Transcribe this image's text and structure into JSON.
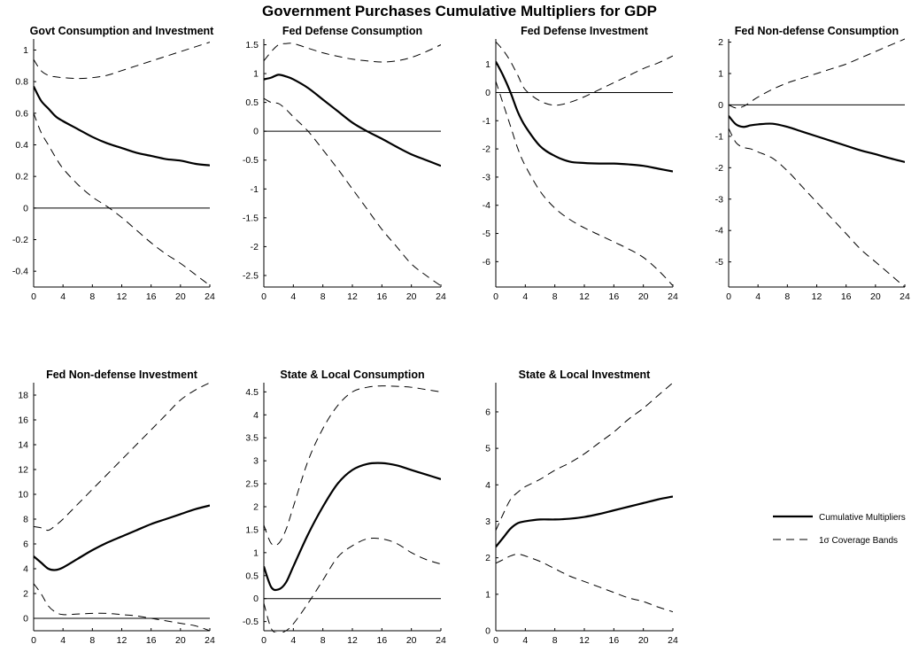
{
  "title": "Government Purchases Cumulative Multipliers for GDP",
  "legend": {
    "placement": "right-bottom",
    "items": [
      {
        "label": "Cumulative Multipliers",
        "style": "solid"
      },
      {
        "label": "1σ Coverage Bands",
        "style": "dashed"
      }
    ]
  },
  "chart_data": [
    {
      "type": "line",
      "title": "Govt Consumption and Investment",
      "x": [
        0,
        1,
        2,
        3,
        4,
        6,
        8,
        10,
        12,
        14,
        16,
        18,
        20,
        22,
        24
      ],
      "xticks": [
        0,
        4,
        8,
        12,
        16,
        20,
        24
      ],
      "yticks": [
        -0.4,
        -0.2,
        0,
        0.2,
        0.4,
        0.6,
        0.8,
        1
      ],
      "xlim": [
        0,
        24
      ],
      "ylim": [
        -0.5,
        1.07
      ],
      "zero_line": true,
      "series": [
        {
          "role": "multiplier",
          "values": [
            0.77,
            0.68,
            0.63,
            0.58,
            0.55,
            0.5,
            0.45,
            0.41,
            0.38,
            0.35,
            0.33,
            0.31,
            0.3,
            0.28,
            0.27
          ]
        },
        {
          "role": "upper",
          "values": [
            0.94,
            0.87,
            0.84,
            0.83,
            0.825,
            0.82,
            0.825,
            0.84,
            0.87,
            0.9,
            0.93,
            0.96,
            0.99,
            1.02,
            1.05
          ]
        },
        {
          "role": "lower",
          "values": [
            0.6,
            0.48,
            0.4,
            0.32,
            0.25,
            0.15,
            0.07,
            0.01,
            -0.06,
            -0.14,
            -0.22,
            -0.29,
            -0.35,
            -0.42,
            -0.49
          ]
        }
      ]
    },
    {
      "type": "line",
      "title": "Fed Defense Consumption",
      "x": [
        0,
        1,
        2,
        3,
        4,
        6,
        8,
        10,
        12,
        14,
        16,
        18,
        20,
        22,
        24
      ],
      "xticks": [
        0,
        4,
        8,
        12,
        16,
        20,
        24
      ],
      "yticks": [
        -2.5,
        -2,
        -1.5,
        -1,
        -0.5,
        0,
        0.5,
        1,
        1.5
      ],
      "xlim": [
        0,
        24
      ],
      "ylim": [
        -2.7,
        1.6
      ],
      "zero_line": true,
      "series": [
        {
          "role": "multiplier",
          "values": [
            0.9,
            0.93,
            0.98,
            0.95,
            0.9,
            0.75,
            0.55,
            0.35,
            0.15,
            0.0,
            -0.13,
            -0.27,
            -0.4,
            -0.5,
            -0.6
          ]
        },
        {
          "role": "upper",
          "values": [
            1.22,
            1.38,
            1.5,
            1.52,
            1.52,
            1.44,
            1.36,
            1.3,
            1.25,
            1.22,
            1.2,
            1.22,
            1.28,
            1.38,
            1.5
          ]
        },
        {
          "role": "lower",
          "values": [
            0.57,
            0.5,
            0.48,
            0.38,
            0.25,
            0.0,
            -0.32,
            -0.65,
            -1.0,
            -1.35,
            -1.7,
            -2.0,
            -2.3,
            -2.5,
            -2.68
          ]
        }
      ]
    },
    {
      "type": "line",
      "title": "Fed Defense Investment",
      "x": [
        0,
        1,
        2,
        3,
        4,
        6,
        8,
        10,
        12,
        14,
        16,
        18,
        20,
        22,
        24
      ],
      "xticks": [
        0,
        4,
        8,
        12,
        16,
        20,
        24
      ],
      "yticks": [
        -6,
        -5,
        -4,
        -3,
        -2,
        -1,
        0,
        1
      ],
      "xlim": [
        0,
        24
      ],
      "ylim": [
        -6.9,
        1.9
      ],
      "zero_line": true,
      "series": [
        {
          "role": "multiplier",
          "values": [
            1.1,
            0.6,
            0.0,
            -0.7,
            -1.2,
            -1.9,
            -2.25,
            -2.45,
            -2.5,
            -2.52,
            -2.52,
            -2.55,
            -2.6,
            -2.7,
            -2.8
          ]
        },
        {
          "role": "upper",
          "values": [
            1.8,
            1.5,
            1.1,
            0.6,
            0.1,
            -0.3,
            -0.45,
            -0.35,
            -0.15,
            0.1,
            0.35,
            0.6,
            0.85,
            1.05,
            1.3
          ]
        },
        {
          "role": "lower",
          "values": [
            0.4,
            -0.4,
            -1.2,
            -2.0,
            -2.6,
            -3.5,
            -4.1,
            -4.5,
            -4.8,
            -5.05,
            -5.3,
            -5.55,
            -5.85,
            -6.3,
            -6.85
          ]
        }
      ]
    },
    {
      "type": "line",
      "title": "Fed Non-defense Consumption",
      "x": [
        0,
        1,
        2,
        3,
        4,
        6,
        8,
        10,
        12,
        14,
        16,
        18,
        20,
        22,
        24
      ],
      "xticks": [
        0,
        4,
        8,
        12,
        16,
        20,
        24
      ],
      "yticks": [
        -5,
        -4,
        -3,
        -2,
        -1,
        0,
        1,
        2
      ],
      "xlim": [
        0,
        24
      ],
      "ylim": [
        -5.8,
        2.1
      ],
      "zero_line": true,
      "series": [
        {
          "role": "multiplier",
          "values": [
            -0.35,
            -0.62,
            -0.7,
            -0.65,
            -0.62,
            -0.6,
            -0.7,
            -0.85,
            -1.0,
            -1.15,
            -1.3,
            -1.45,
            -1.57,
            -1.7,
            -1.82
          ]
        },
        {
          "role": "upper",
          "values": [
            0.0,
            -0.1,
            -0.05,
            0.1,
            0.25,
            0.5,
            0.7,
            0.85,
            1.0,
            1.15,
            1.3,
            1.5,
            1.7,
            1.9,
            2.1
          ]
        },
        {
          "role": "lower",
          "values": [
            -0.75,
            -1.2,
            -1.35,
            -1.4,
            -1.5,
            -1.7,
            -2.1,
            -2.6,
            -3.1,
            -3.6,
            -4.1,
            -4.6,
            -5.0,
            -5.4,
            -5.8
          ]
        }
      ]
    },
    {
      "type": "line",
      "title": "Fed Non-defense Investment",
      "x": [
        0,
        1,
        2,
        3,
        4,
        6,
        8,
        10,
        12,
        14,
        16,
        18,
        20,
        22,
        24
      ],
      "xticks": [
        0,
        4,
        8,
        12,
        16,
        20,
        24
      ],
      "yticks": [
        0,
        2,
        4,
        6,
        8,
        10,
        12,
        14,
        16,
        18
      ],
      "xlim": [
        0,
        24
      ],
      "ylim": [
        -1.0,
        19.0
      ],
      "zero_line": true,
      "series": [
        {
          "role": "multiplier",
          "values": [
            5.0,
            4.5,
            4.0,
            3.9,
            4.1,
            4.8,
            5.5,
            6.1,
            6.6,
            7.1,
            7.6,
            8.0,
            8.4,
            8.8,
            9.1
          ]
        },
        {
          "role": "upper",
          "values": [
            7.4,
            7.3,
            7.1,
            7.5,
            8.0,
            9.2,
            10.4,
            11.6,
            12.8,
            14.0,
            15.2,
            16.4,
            17.6,
            18.4,
            19.0
          ]
        },
        {
          "role": "lower",
          "values": [
            2.8,
            2.0,
            1.0,
            0.5,
            0.3,
            0.35,
            0.4,
            0.4,
            0.3,
            0.2,
            0.0,
            -0.2,
            -0.4,
            -0.6,
            -1.0
          ]
        }
      ]
    },
    {
      "type": "line",
      "title": "State & Local Consumption",
      "x": [
        0,
        1,
        2,
        3,
        4,
        6,
        8,
        10,
        12,
        14,
        16,
        18,
        20,
        22,
        24
      ],
      "xticks": [
        0,
        4,
        8,
        12,
        16,
        20,
        24
      ],
      "yticks": [
        -0.5,
        0,
        0.5,
        1,
        1.5,
        2,
        2.5,
        3,
        3.5,
        4,
        4.5
      ],
      "xlim": [
        0,
        24
      ],
      "ylim": [
        -0.7,
        4.7
      ],
      "zero_line": true,
      "series": [
        {
          "role": "multiplier",
          "values": [
            0.7,
            0.25,
            0.2,
            0.35,
            0.7,
            1.4,
            2.0,
            2.5,
            2.8,
            2.93,
            2.95,
            2.9,
            2.8,
            2.7,
            2.6
          ]
        },
        {
          "role": "upper",
          "values": [
            1.6,
            1.2,
            1.2,
            1.5,
            2.0,
            3.0,
            3.7,
            4.2,
            4.5,
            4.6,
            4.63,
            4.62,
            4.6,
            4.55,
            4.5
          ]
        },
        {
          "role": "lower",
          "values": [
            -0.1,
            -0.65,
            -0.75,
            -0.7,
            -0.55,
            -0.1,
            0.4,
            0.9,
            1.15,
            1.3,
            1.3,
            1.2,
            1.0,
            0.85,
            0.75
          ]
        }
      ]
    },
    {
      "type": "line",
      "title": "State & Local Investment",
      "x": [
        0,
        1,
        2,
        3,
        4,
        6,
        8,
        10,
        12,
        14,
        16,
        18,
        20,
        22,
        24
      ],
      "xticks": [
        0,
        4,
        8,
        12,
        16,
        20,
        24
      ],
      "yticks": [
        0,
        1,
        2,
        3,
        4,
        5,
        6
      ],
      "xlim": [
        0,
        24
      ],
      "ylim": [
        0,
        6.8
      ],
      "zero_line": false,
      "series": [
        {
          "role": "multiplier",
          "values": [
            2.3,
            2.55,
            2.8,
            2.95,
            3.0,
            3.05,
            3.05,
            3.07,
            3.12,
            3.2,
            3.3,
            3.4,
            3.5,
            3.6,
            3.68
          ]
        },
        {
          "role": "upper",
          "values": [
            2.75,
            3.2,
            3.6,
            3.8,
            3.95,
            4.15,
            4.4,
            4.6,
            4.85,
            5.15,
            5.45,
            5.8,
            6.1,
            6.45,
            6.8
          ]
        },
        {
          "role": "lower",
          "values": [
            1.85,
            1.95,
            2.05,
            2.1,
            2.05,
            1.9,
            1.7,
            1.5,
            1.35,
            1.2,
            1.05,
            0.9,
            0.8,
            0.65,
            0.52
          ]
        }
      ]
    }
  ]
}
